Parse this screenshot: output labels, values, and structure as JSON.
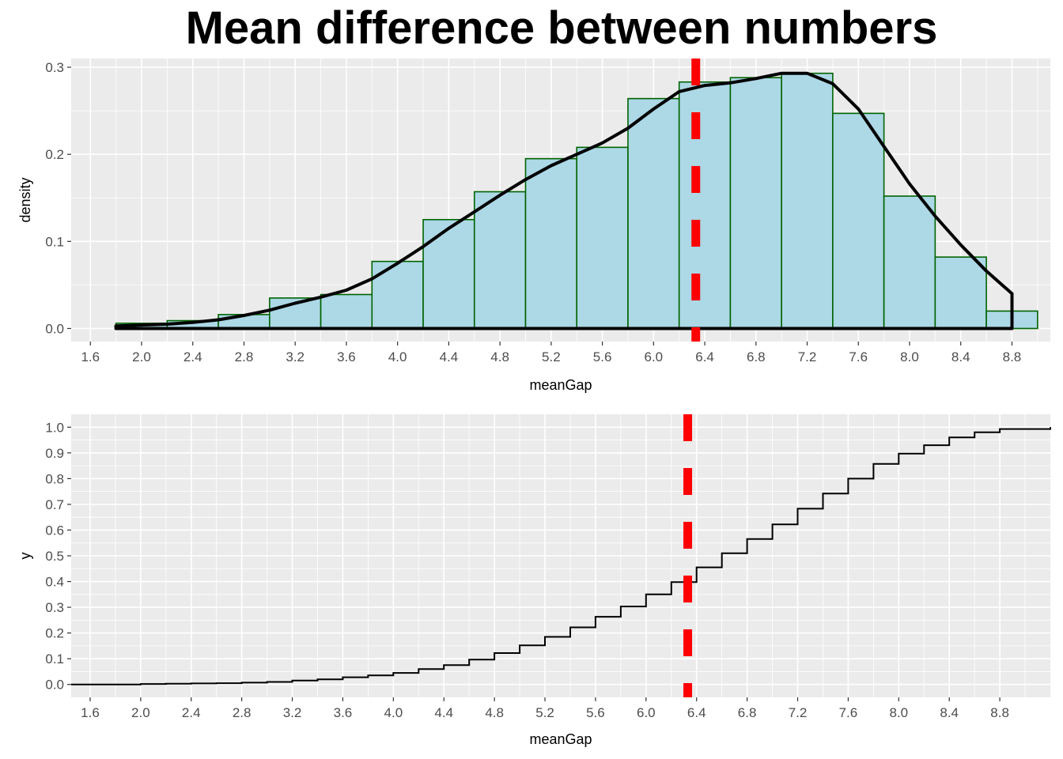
{
  "title": "Mean difference between numbers",
  "chart_data": [
    {
      "type": "histogram",
      "xlabel": "meanGap",
      "ylabel": "density",
      "xlim": [
        1.45,
        9.1
      ],
      "ylim": [
        -0.015,
        0.31
      ],
      "x_ticks": [
        "1.6",
        "2.0",
        "2.4",
        "2.8",
        "3.2",
        "3.6",
        "4.0",
        "4.4",
        "4.8",
        "5.2",
        "5.6",
        "6.0",
        "6.4",
        "6.8",
        "7.2",
        "7.6",
        "8.0",
        "8.4",
        "8.8"
      ],
      "y_ticks": [
        "0.0",
        "0.1",
        "0.2",
        "0.3"
      ],
      "bins": [
        {
          "x0": 1.8,
          "x1": 2.2,
          "density": 0.006
        },
        {
          "x0": 2.2,
          "x1": 2.6,
          "density": 0.009
        },
        {
          "x0": 2.6,
          "x1": 3.0,
          "density": 0.016
        },
        {
          "x0": 3.0,
          "x1": 3.4,
          "density": 0.035
        },
        {
          "x0": 3.4,
          "x1": 3.8,
          "density": 0.039
        },
        {
          "x0": 3.8,
          "x1": 4.2,
          "density": 0.077
        },
        {
          "x0": 4.2,
          "x1": 4.6,
          "density": 0.125
        },
        {
          "x0": 4.6,
          "x1": 5.0,
          "density": 0.157
        },
        {
          "x0": 5.0,
          "x1": 5.4,
          "density": 0.195
        },
        {
          "x0": 5.4,
          "x1": 5.8,
          "density": 0.208
        },
        {
          "x0": 5.8,
          "x1": 6.2,
          "density": 0.264
        },
        {
          "x0": 6.2,
          "x1": 6.6,
          "density": 0.283
        },
        {
          "x0": 6.6,
          "x1": 7.0,
          "density": 0.288
        },
        {
          "x0": 7.0,
          "x1": 7.4,
          "density": 0.293
        },
        {
          "x0": 7.4,
          "x1": 7.8,
          "density": 0.247
        },
        {
          "x0": 7.8,
          "x1": 8.2,
          "density": 0.152
        },
        {
          "x0": 8.2,
          "x1": 8.6,
          "density": 0.082
        },
        {
          "x0": 8.6,
          "x1": 9.0,
          "density": 0.02
        }
      ],
      "density_curve": {
        "x": [
          1.8,
          2.0,
          2.2,
          2.4,
          2.6,
          2.8,
          3.0,
          3.2,
          3.4,
          3.6,
          3.8,
          4.0,
          4.2,
          4.4,
          4.6,
          4.8,
          5.0,
          5.2,
          5.4,
          5.6,
          5.8,
          6.0,
          6.2,
          6.4,
          6.6,
          6.8,
          7.0,
          7.2,
          7.4,
          7.6,
          7.8,
          8.0,
          8.2,
          8.4,
          8.6,
          8.8
        ],
        "y": [
          0.003,
          0.004,
          0.005,
          0.007,
          0.01,
          0.015,
          0.021,
          0.029,
          0.036,
          0.044,
          0.057,
          0.075,
          0.094,
          0.115,
          0.134,
          0.153,
          0.171,
          0.187,
          0.2,
          0.213,
          0.23,
          0.252,
          0.272,
          0.279,
          0.282,
          0.287,
          0.293,
          0.293,
          0.281,
          0.252,
          0.209,
          0.166,
          0.129,
          0.096,
          0.066,
          0.04
        ]
      },
      "vline_x": 6.33,
      "colors": {
        "fill": "#add8e6",
        "bar_outline": "#006400",
        "curve": "#000000",
        "vline": "#ff0000",
        "panel": "#ebebeb",
        "grid": "#ffffff"
      }
    },
    {
      "type": "step",
      "xlabel": "meanGap",
      "ylabel": "y",
      "xlim": [
        1.45,
        9.2
      ],
      "ylim": [
        -0.05,
        1.05
      ],
      "x_ticks": [
        "1.6",
        "2.0",
        "2.4",
        "2.8",
        "3.2",
        "3.6",
        "4.0",
        "4.4",
        "4.8",
        "5.2",
        "5.6",
        "6.0",
        "6.4",
        "6.8",
        "7.2",
        "7.6",
        "8.0",
        "8.4",
        "8.8"
      ],
      "y_ticks": [
        "0.0",
        "0.1",
        "0.2",
        "0.3",
        "0.4",
        "0.5",
        "0.6",
        "0.7",
        "0.8",
        "0.9",
        "1.0"
      ],
      "x": [
        1.45,
        1.8,
        2.0,
        2.2,
        2.4,
        2.6,
        2.8,
        3.0,
        3.2,
        3.4,
        3.6,
        3.8,
        4.0,
        4.2,
        4.4,
        4.6,
        4.8,
        5.0,
        5.2,
        5.4,
        5.6,
        5.8,
        6.0,
        6.2,
        6.4,
        6.6,
        6.8,
        7.0,
        7.2,
        7.4,
        7.6,
        7.8,
        8.0,
        8.2,
        8.4,
        8.6,
        8.8,
        9.2
      ],
      "y": [
        0.0,
        0.0,
        0.002,
        0.003,
        0.004,
        0.005,
        0.007,
        0.01,
        0.015,
        0.02,
        0.028,
        0.035,
        0.045,
        0.06,
        0.075,
        0.097,
        0.122,
        0.152,
        0.185,
        0.222,
        0.263,
        0.303,
        0.35,
        0.398,
        0.455,
        0.51,
        0.565,
        0.622,
        0.683,
        0.742,
        0.8,
        0.857,
        0.897,
        0.93,
        0.96,
        0.98,
        0.993,
        1.0
      ],
      "vline_x": 6.33,
      "colors": {
        "line": "#000000",
        "vline": "#ff0000",
        "panel": "#ebebeb",
        "grid": "#ffffff"
      }
    }
  ]
}
